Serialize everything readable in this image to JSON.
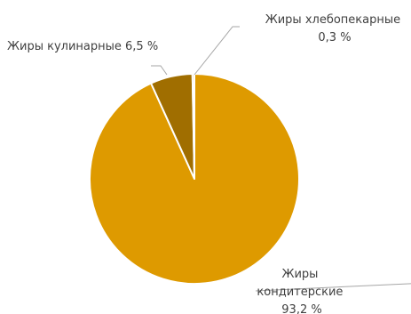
{
  "chart_data": {
    "type": "pie",
    "title": "",
    "colors": {
      "slice_main": "#DE9A00",
      "slice_culinary": "#A06E00",
      "slice_bakery": "#DE9A00",
      "label_text": "#404040",
      "leader_line": "#A6A6A6",
      "slice_border": "#FFFFFF"
    },
    "slices": [
      {
        "label_lines": [
          "Жиры",
          "кондитерские",
          "93,2 %"
        ],
        "value": 93.2,
        "color": "#DE9A00"
      },
      {
        "label_lines": [
          "Жиры кулинарные 6,5 %"
        ],
        "value": 6.5,
        "color": "#A06E00"
      },
      {
        "label_lines": [
          "Жиры хлебопекарные",
          "0,3 %"
        ],
        "value": 0.3,
        "color": "#DE9A00"
      }
    ],
    "start_angle": "12 o'clock",
    "direction": "clockwise"
  }
}
